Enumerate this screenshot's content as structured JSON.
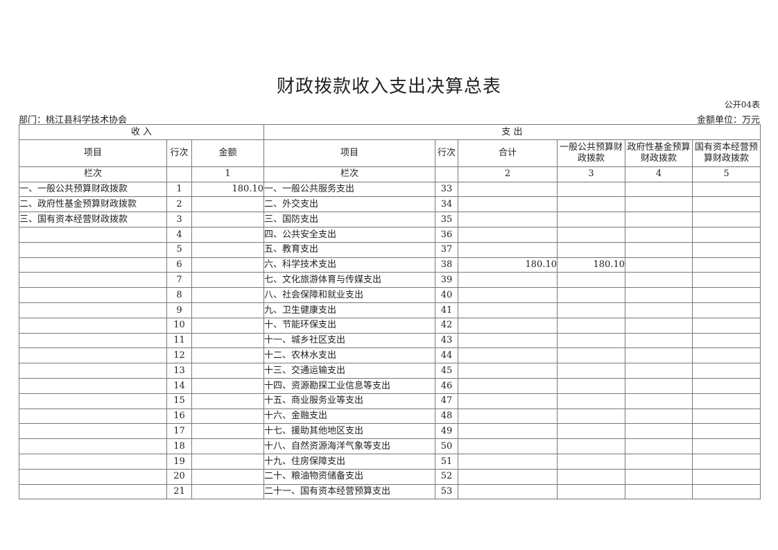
{
  "title": "财政拨款收入支出决算总表",
  "form_code": "公开04表",
  "department": "部门：桃江县科学技术协会",
  "unit": "金额单位：万元",
  "headers": {
    "income": "收 入",
    "expense": "支 出",
    "item": "项目",
    "row_no": "行次",
    "amount": "金额",
    "total": "合计",
    "general_budget": "一般公共预算财政拨款",
    "gov_fund": "政府性基金预算财政拨款",
    "state_capital": "国有资本经营预算财政拨款",
    "column_label": "栏次",
    "col1": "1",
    "col2": "2",
    "col3": "3",
    "col4": "4",
    "col5": "5"
  },
  "rows": [
    {
      "in_item": "一、一般公共预算财政拨款",
      "in_no": "1",
      "in_amt": "180.10",
      "ex_item": "一、一般公共服务支出",
      "ex_no": "33",
      "total": "",
      "general": "",
      "fund": "",
      "capital": ""
    },
    {
      "in_item": "二、政府性基金预算财政拨款",
      "in_no": "2",
      "in_amt": "",
      "ex_item": "二、外交支出",
      "ex_no": "34",
      "total": "",
      "general": "",
      "fund": "",
      "capital": ""
    },
    {
      "in_item": "三、国有资本经营财政拨款",
      "in_no": "3",
      "in_amt": "",
      "ex_item": "三、国防支出",
      "ex_no": "35",
      "total": "",
      "general": "",
      "fund": "",
      "capital": ""
    },
    {
      "in_item": "",
      "in_no": "4",
      "in_amt": "",
      "ex_item": "四、公共安全支出",
      "ex_no": "36",
      "total": "",
      "general": "",
      "fund": "",
      "capital": ""
    },
    {
      "in_item": "",
      "in_no": "5",
      "in_amt": "",
      "ex_item": "五、教育支出",
      "ex_no": "37",
      "total": "",
      "general": "",
      "fund": "",
      "capital": ""
    },
    {
      "in_item": "",
      "in_no": "6",
      "in_amt": "",
      "ex_item": "六、科学技术支出",
      "ex_no": "38",
      "total": "180.10",
      "general": "180.10",
      "fund": "",
      "capital": ""
    },
    {
      "in_item": "",
      "in_no": "7",
      "in_amt": "",
      "ex_item": "七、文化旅游体育与传媒支出",
      "ex_no": "39",
      "total": "",
      "general": "",
      "fund": "",
      "capital": ""
    },
    {
      "in_item": "",
      "in_no": "8",
      "in_amt": "",
      "ex_item": "八、社会保障和就业支出",
      "ex_no": "40",
      "total": "",
      "general": "",
      "fund": "",
      "capital": ""
    },
    {
      "in_item": "",
      "in_no": "9",
      "in_amt": "",
      "ex_item": "九、卫生健康支出",
      "ex_no": "41",
      "total": "",
      "general": "",
      "fund": "",
      "capital": ""
    },
    {
      "in_item": "",
      "in_no": "10",
      "in_amt": "",
      "ex_item": "十、节能环保支出",
      "ex_no": "42",
      "total": "",
      "general": "",
      "fund": "",
      "capital": ""
    },
    {
      "in_item": "",
      "in_no": "11",
      "in_amt": "",
      "ex_item": "十一、城乡社区支出",
      "ex_no": "43",
      "total": "",
      "general": "",
      "fund": "",
      "capital": ""
    },
    {
      "in_item": "",
      "in_no": "12",
      "in_amt": "",
      "ex_item": "十二、农林水支出",
      "ex_no": "44",
      "total": "",
      "general": "",
      "fund": "",
      "capital": ""
    },
    {
      "in_item": "",
      "in_no": "13",
      "in_amt": "",
      "ex_item": "十三、交通运输支出",
      "ex_no": "45",
      "total": "",
      "general": "",
      "fund": "",
      "capital": ""
    },
    {
      "in_item": "",
      "in_no": "14",
      "in_amt": "",
      "ex_item": "十四、资源勘探工业信息等支出",
      "ex_no": "46",
      "total": "",
      "general": "",
      "fund": "",
      "capital": ""
    },
    {
      "in_item": "",
      "in_no": "15",
      "in_amt": "",
      "ex_item": "十五、商业服务业等支出",
      "ex_no": "47",
      "total": "",
      "general": "",
      "fund": "",
      "capital": ""
    },
    {
      "in_item": "",
      "in_no": "16",
      "in_amt": "",
      "ex_item": "十六、金融支出",
      "ex_no": "48",
      "total": "",
      "general": "",
      "fund": "",
      "capital": ""
    },
    {
      "in_item": "",
      "in_no": "17",
      "in_amt": "",
      "ex_item": "十七、援助其他地区支出",
      "ex_no": "49",
      "total": "",
      "general": "",
      "fund": "",
      "capital": ""
    },
    {
      "in_item": "",
      "in_no": "18",
      "in_amt": "",
      "ex_item": "十八、自然资源海洋气象等支出",
      "ex_no": "50",
      "total": "",
      "general": "",
      "fund": "",
      "capital": ""
    },
    {
      "in_item": "",
      "in_no": "19",
      "in_amt": "",
      "ex_item": "十九、住房保障支出",
      "ex_no": "51",
      "total": "",
      "general": "",
      "fund": "",
      "capital": ""
    },
    {
      "in_item": "",
      "in_no": "20",
      "in_amt": "",
      "ex_item": "二十、粮油物资储备支出",
      "ex_no": "52",
      "total": "",
      "general": "",
      "fund": "",
      "capital": ""
    },
    {
      "in_item": "",
      "in_no": "21",
      "in_amt": "",
      "ex_item": "二十一、国有资本经营预算支出",
      "ex_no": "53",
      "total": "",
      "general": "",
      "fund": "",
      "capital": ""
    }
  ]
}
